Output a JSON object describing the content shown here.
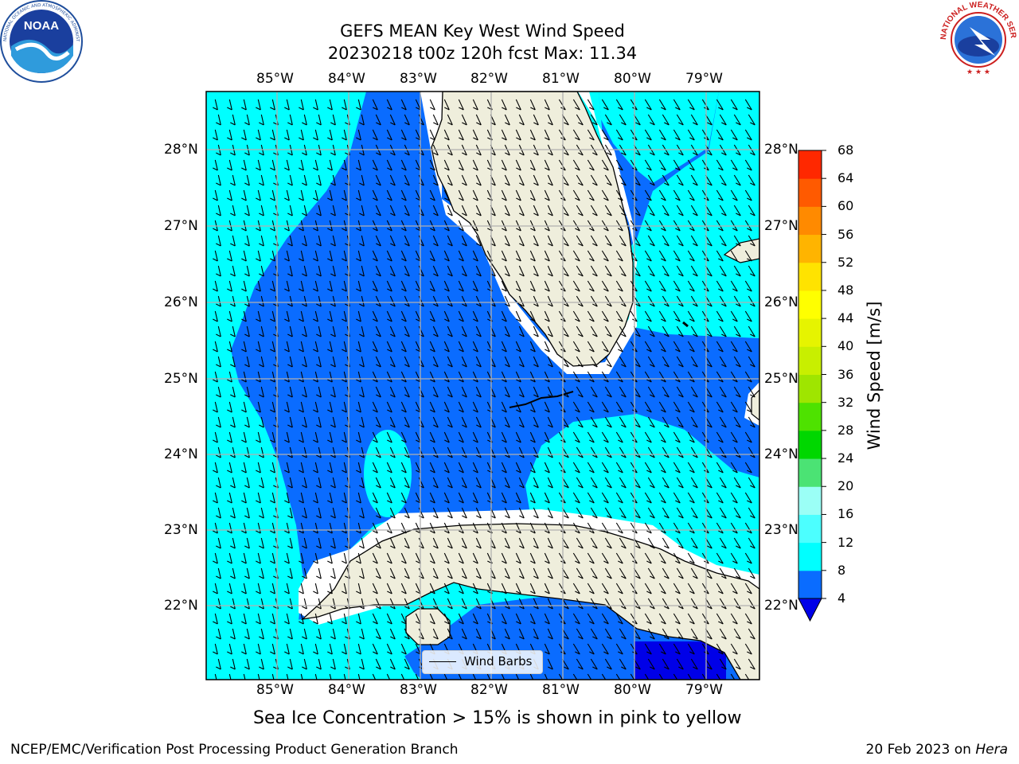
{
  "title": {
    "line1": "GEFS MEAN Key West Wind Speed",
    "line2": "20230218 t00z 120h fcst   Max: 11.34"
  },
  "logos": {
    "noaa": {
      "text": "NOAA",
      "ring_text": "NATIONAL OCEANIC AND ATMOSPHERIC ADMINISTRATION · U.S. DEPARTMENT OF COMMERCE"
    },
    "nws": {
      "ring_text": "NATIONAL WEATHER SERVICE"
    }
  },
  "map": {
    "lon_ticks": [
      "85°W",
      "84°W",
      "83°W",
      "82°W",
      "81°W",
      "80°W",
      "79°W"
    ],
    "lat_ticks": [
      "28°N",
      "27°N",
      "26°N",
      "25°N",
      "24°N",
      "23°N",
      "22°N"
    ],
    "gridlines": true,
    "colors": {
      "level_4_8": "#0a6cff",
      "level_8_12": "#00ffff",
      "below_4": "#0000e8",
      "land": "#efeedc",
      "coast": "#000000",
      "grid": "#b0b0b0"
    }
  },
  "legend": {
    "label": "Wind Barbs"
  },
  "colorbar": {
    "label": "Wind Speed [m/s]",
    "ticks": [
      "68",
      "64",
      "60",
      "56",
      "52",
      "48",
      "44",
      "40",
      "36",
      "32",
      "28",
      "24",
      "20",
      "16",
      "12",
      "8",
      "4"
    ],
    "colors": [
      "#0a6cff",
      "#00ffff",
      "#4cffff",
      "#9bfff6",
      "#4be374",
      "#00d700",
      "#4ee200",
      "#9fe500",
      "#c8ef00",
      "#e6f400",
      "#ffff00",
      "#ffe300",
      "#ffb400",
      "#ff8a00",
      "#ff5a00",
      "#ff2800"
    ],
    "extend_color": "#0000e8"
  },
  "footer": {
    "note": "Sea Ice Concentration > 15% is shown in pink to yellow",
    "credit": "NCEP/EMC/Verification Post Processing Product Generation Branch",
    "date_prefix": "20 Feb 2023 on ",
    "date_machine": "Hera"
  }
}
